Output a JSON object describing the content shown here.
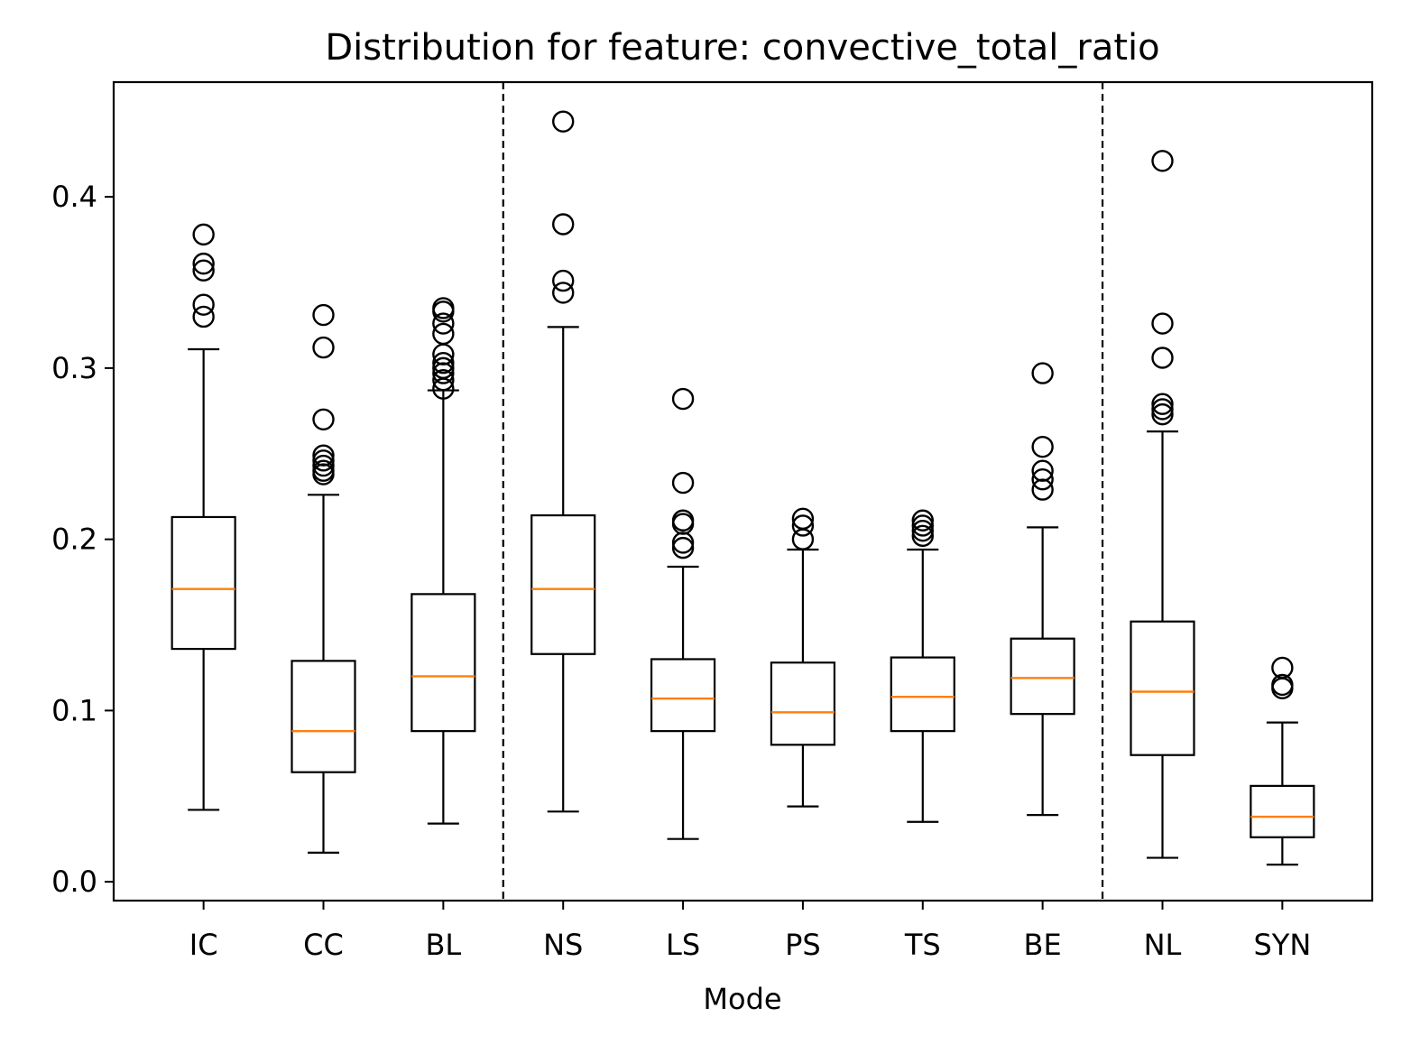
{
  "chart_data": {
    "type": "box",
    "title": "Distribution for feature: convective_total_ratio",
    "xlabel": "Mode",
    "ylabel": "",
    "ylim": [
      -0.011,
      0.467
    ],
    "yticks": [
      0.0,
      0.1,
      0.2,
      0.3,
      0.4
    ],
    "ytick_labels": [
      "0.0",
      "0.1",
      "0.2",
      "0.3",
      "0.4"
    ],
    "categories": [
      "IC",
      "CC",
      "BL",
      "NS",
      "LS",
      "PS",
      "TS",
      "BE",
      "NL",
      "SYN"
    ],
    "separators_after_index": [
      2,
      7
    ],
    "colors": {
      "box": "#000000",
      "median": "#ff7f0e",
      "separator": "#000000"
    },
    "boxes": [
      {
        "label": "IC",
        "whisker_low": 0.042,
        "q1": 0.136,
        "median": 0.171,
        "q3": 0.213,
        "whisker_high": 0.311,
        "outliers": [
          0.33,
          0.337,
          0.357,
          0.361,
          0.378
        ]
      },
      {
        "label": "CC",
        "whisker_low": 0.017,
        "q1": 0.064,
        "median": 0.088,
        "q3": 0.129,
        "whisker_high": 0.226,
        "outliers": [
          0.238,
          0.24,
          0.243,
          0.246,
          0.249,
          0.27,
          0.312,
          0.331
        ]
      },
      {
        "label": "BL",
        "whisker_low": 0.034,
        "q1": 0.088,
        "median": 0.12,
        "q3": 0.168,
        "whisker_high": 0.287,
        "outliers": [
          0.288,
          0.293,
          0.297,
          0.3,
          0.303,
          0.308,
          0.32,
          0.326,
          0.333,
          0.335
        ]
      },
      {
        "label": "NS",
        "whisker_low": 0.041,
        "q1": 0.133,
        "median": 0.171,
        "q3": 0.214,
        "whisker_high": 0.324,
        "outliers": [
          0.344,
          0.351,
          0.384,
          0.444
        ]
      },
      {
        "label": "LS",
        "whisker_low": 0.025,
        "q1": 0.088,
        "median": 0.107,
        "q3": 0.13,
        "whisker_high": 0.184,
        "outliers": [
          0.195,
          0.198,
          0.209,
          0.211,
          0.233,
          0.282
        ]
      },
      {
        "label": "PS",
        "whisker_low": 0.044,
        "q1": 0.08,
        "median": 0.099,
        "q3": 0.128,
        "whisker_high": 0.194,
        "outliers": [
          0.2,
          0.208,
          0.212
        ]
      },
      {
        "label": "TS",
        "whisker_low": 0.035,
        "q1": 0.088,
        "median": 0.108,
        "q3": 0.131,
        "whisker_high": 0.194,
        "outliers": [
          0.202,
          0.205,
          0.208,
          0.211
        ]
      },
      {
        "label": "BE",
        "whisker_low": 0.039,
        "q1": 0.098,
        "median": 0.119,
        "q3": 0.142,
        "whisker_high": 0.207,
        "outliers": [
          0.229,
          0.235,
          0.24,
          0.254,
          0.297
        ]
      },
      {
        "label": "NL",
        "whisker_low": 0.014,
        "q1": 0.074,
        "median": 0.111,
        "q3": 0.152,
        "whisker_high": 0.263,
        "outliers": [
          0.273,
          0.276,
          0.279,
          0.306,
          0.326,
          0.421
        ]
      },
      {
        "label": "SYN",
        "whisker_low": 0.01,
        "q1": 0.026,
        "median": 0.038,
        "q3": 0.056,
        "whisker_high": 0.093,
        "outliers": [
          0.113,
          0.115,
          0.125
        ]
      }
    ]
  }
}
